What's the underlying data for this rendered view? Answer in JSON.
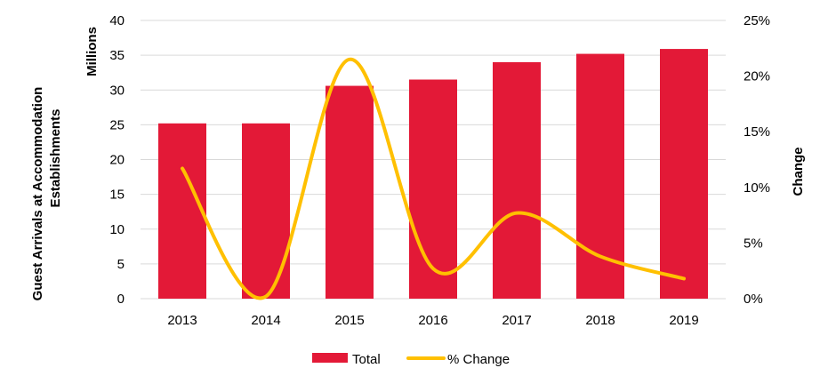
{
  "chart_data": {
    "type": "bar",
    "categories": [
      "2013",
      "2014",
      "2015",
      "2016",
      "2017",
      "2018",
      "2019"
    ],
    "series": [
      {
        "name": "Total",
        "axis": "left",
        "kind": "bar",
        "color": "#e31937",
        "values": [
          25.2,
          25.2,
          30.6,
          31.5,
          34.0,
          35.2,
          35.9
        ]
      },
      {
        "name": "% Change",
        "axis": "right",
        "kind": "line",
        "color": "#ffc000",
        "values": [
          11.7,
          0.2,
          21.5,
          2.7,
          7.7,
          3.8,
          1.8
        ]
      }
    ],
    "y_left": {
      "label_line1": "Guest Arrivals at Accommodation",
      "label_line2": "Establishments",
      "unit_label": "Millions",
      "min": 0,
      "max": 40,
      "ticks": [
        "0",
        "5",
        "10",
        "15",
        "20",
        "25",
        "30",
        "35",
        "40"
      ]
    },
    "y_right": {
      "label": "Change",
      "min": 0,
      "max": 25,
      "ticks": [
        "0%",
        "5%",
        "10%",
        "15%",
        "20%",
        "25%"
      ]
    },
    "grid": true,
    "legend_position": "bottom"
  }
}
